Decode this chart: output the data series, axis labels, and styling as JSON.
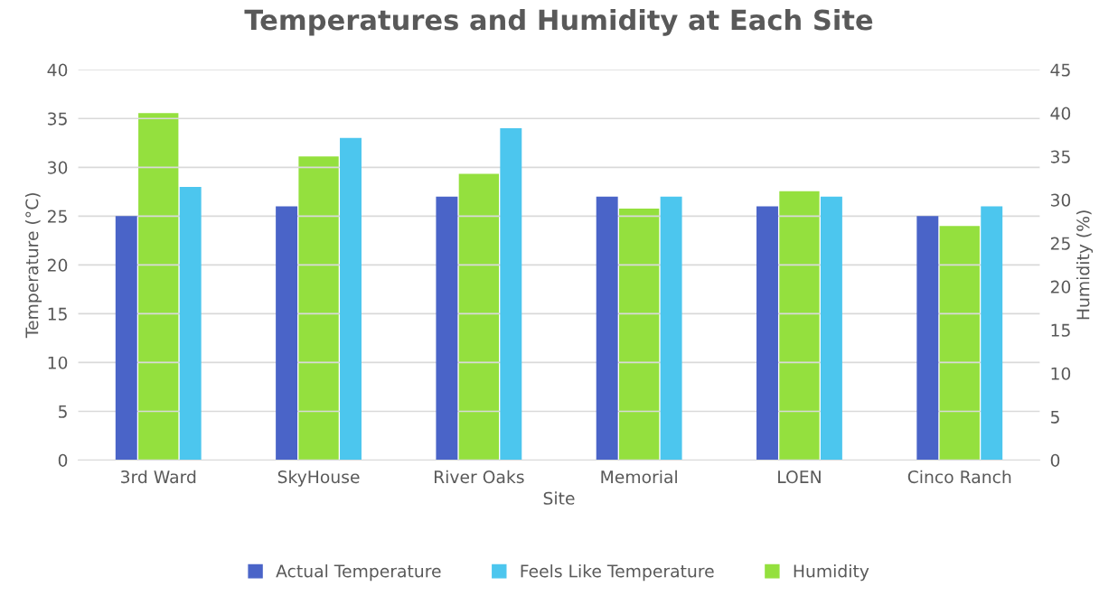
{
  "chart_data": {
    "type": "bar",
    "title": "Temperatures and Humidity at Each Site",
    "xlabel": "Site",
    "ylabel": "Temperature (°C)",
    "y2label": "Humidity (%)",
    "categories": [
      "3rd Ward",
      "SkyHouse",
      "River Oaks",
      "Memorial",
      "LOEN",
      "Cinco Ranch"
    ],
    "series": [
      {
        "name": "Actual Temperature",
        "color": "#4a64c8",
        "values": [
          25,
          26,
          27,
          27,
          26,
          25
        ]
      },
      {
        "name": "Feels Like Temperature",
        "color": "#4cc6ee",
        "values": [
          28,
          33,
          34,
          27,
          27,
          26
        ]
      },
      {
        "name": "Humidity",
        "color": "#94e03e",
        "values": [
          40,
          35,
          33,
          29,
          31,
          27
        ],
        "axis": "y2"
      }
    ],
    "ylim": [
      0,
      40
    ],
    "yticks": [
      0,
      5,
      10,
      15,
      20,
      25,
      30,
      35,
      40
    ],
    "y2lim": [
      0,
      45
    ],
    "y2ticks": [
      0,
      5,
      10,
      15,
      20,
      25,
      30,
      35,
      40,
      45
    ],
    "grid": "y",
    "legend": "bottom"
  }
}
